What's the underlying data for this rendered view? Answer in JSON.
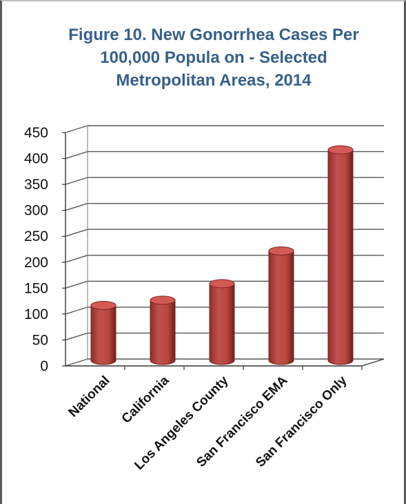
{
  "chart_data": {
    "type": "bar",
    "title_lines": [
      "Figure 10. New Gonorrhea Cases Per",
      "100,000 Popula   on - Selected",
      "Metropolitan Areas, 2014"
    ],
    "categories": [
      "National",
      "California",
      "Los Angeles County",
      "San Francisco EMA",
      "San Francisco Only"
    ],
    "values": [
      110,
      120,
      152,
      215,
      410
    ],
    "ylim": [
      0,
      450
    ],
    "yticks": [
      0,
      50,
      100,
      150,
      200,
      250,
      300,
      350,
      400,
      450
    ],
    "ytick_labels": [
      "0",
      "50",
      "100",
      "150",
      "200",
      "250",
      "300",
      "350",
      "400",
      "450"
    ],
    "grid": true,
    "legend": "none",
    "bar_color": "#c0504d",
    "bar_dark": "#7a2422",
    "bar_top": "#d45a56",
    "title_color": "#36608a"
  }
}
